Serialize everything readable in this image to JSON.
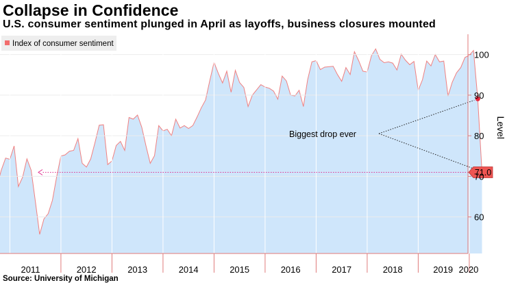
{
  "header": {
    "title": "Collapse in Confidence",
    "subtitle": "U.S. consumer sentiment plunged in April as layoffs, business closures mounted"
  },
  "footer": {
    "source": "Source: University of Michigan"
  },
  "colors": {
    "area_fill": "#cfe6fb",
    "line": "#f08080",
    "axis": "#e07a7a",
    "marker": "#e8253d",
    "arrow": "#e02f8e",
    "callout_box": "#ee5552",
    "grid": "#ffffff",
    "legend_bg": "#eeeeee",
    "legend_swatch": "#f26d6d"
  },
  "chart_data": {
    "type": "area",
    "title": "Collapse in Confidence",
    "subtitle": "U.S. consumer sentiment plunged in April as layoffs, business closures mounted",
    "ylabel": "Level",
    "ylim": [
      51,
      105
    ],
    "yticks": [
      60,
      70,
      80,
      90,
      100
    ],
    "y_axis_side": "right",
    "grid": true,
    "legend": {
      "position": "top-left",
      "entries": [
        "Index of consumer sentiment"
      ]
    },
    "x_tick_labels": [
      "2011",
      "2012",
      "2013",
      "2014",
      "2015",
      "2016",
      "2017",
      "2018",
      "2019",
      "2020"
    ],
    "series": [
      {
        "name": "Index of consumer sentiment",
        "x": [
          "2010-10",
          "2010-11",
          "2010-12",
          "2011-01",
          "2011-02",
          "2011-03",
          "2011-04",
          "2011-05",
          "2011-06",
          "2011-07",
          "2011-08",
          "2011-09",
          "2011-10",
          "2011-11",
          "2011-12",
          "2012-01",
          "2012-02",
          "2012-03",
          "2012-04",
          "2012-05",
          "2012-06",
          "2012-07",
          "2012-08",
          "2012-09",
          "2012-10",
          "2012-11",
          "2012-12",
          "2013-01",
          "2013-02",
          "2013-03",
          "2013-04",
          "2013-05",
          "2013-06",
          "2013-07",
          "2013-08",
          "2013-09",
          "2013-10",
          "2013-11",
          "2013-12",
          "2014-01",
          "2014-02",
          "2014-03",
          "2014-04",
          "2014-05",
          "2014-06",
          "2014-07",
          "2014-08",
          "2014-09",
          "2014-10",
          "2014-11",
          "2014-12",
          "2015-01",
          "2015-02",
          "2015-03",
          "2015-04",
          "2015-05",
          "2015-06",
          "2015-07",
          "2015-08",
          "2015-09",
          "2015-10",
          "2015-11",
          "2015-12",
          "2016-01",
          "2016-02",
          "2016-03",
          "2016-04",
          "2016-05",
          "2016-06",
          "2016-07",
          "2016-08",
          "2016-09",
          "2016-10",
          "2016-11",
          "2016-12",
          "2017-01",
          "2017-02",
          "2017-03",
          "2017-04",
          "2017-05",
          "2017-06",
          "2017-07",
          "2017-08",
          "2017-09",
          "2017-10",
          "2017-11",
          "2017-12",
          "2018-01",
          "2018-02",
          "2018-03",
          "2018-04",
          "2018-05",
          "2018-06",
          "2018-07",
          "2018-08",
          "2018-09",
          "2018-10",
          "2018-11",
          "2018-12",
          "2019-01",
          "2019-02",
          "2019-03",
          "2019-04",
          "2019-05",
          "2019-06",
          "2019-07",
          "2019-08",
          "2019-09",
          "2019-10",
          "2019-11",
          "2019-12",
          "2020-01",
          "2020-02",
          "2020-03",
          "2020-04"
        ],
        "values": [
          67.7,
          71.6,
          74.5,
          74.2,
          77.5,
          67.5,
          69.8,
          74.3,
          71.5,
          63.7,
          55.7,
          59.5,
          60.8,
          64.1,
          69.9,
          75.0,
          75.3,
          76.2,
          76.4,
          79.3,
          73.2,
          72.3,
          74.3,
          78.3,
          82.6,
          82.7,
          72.9,
          73.8,
          77.6,
          78.6,
          76.4,
          84.5,
          84.1,
          85.1,
          82.1,
          77.5,
          73.2,
          75.1,
          82.5,
          81.2,
          81.6,
          80.0,
          84.1,
          81.9,
          82.5,
          81.8,
          82.5,
          84.6,
          86.9,
          88.8,
          93.6,
          98.1,
          95.4,
          93.0,
          95.9,
          90.7,
          96.1,
          93.1,
          91.9,
          87.2,
          90.0,
          91.3,
          92.6,
          92.0,
          91.7,
          91.0,
          89.0,
          94.7,
          93.5,
          90.0,
          89.8,
          91.2,
          87.2,
          93.8,
          98.2,
          98.5,
          96.3,
          96.9,
          97.0,
          97.1,
          95.1,
          93.4,
          96.8,
          95.1,
          100.7,
          98.5,
          95.9,
          95.7,
          99.7,
          101.4,
          98.8,
          98.0,
          98.2,
          97.9,
          96.2,
          100.1,
          98.6,
          97.5,
          98.3,
          91.2,
          93.8,
          98.4,
          97.2,
          100.0,
          98.2,
          98.4,
          89.8,
          93.2,
          95.5,
          96.8,
          99.3,
          99.8,
          101.0,
          89.1,
          71.0
        ]
      }
    ],
    "annotations": [
      {
        "text": "Biggest drop ever"
      },
      {
        "text": "71.0",
        "value": 71.0,
        "type": "last-value"
      }
    ]
  }
}
